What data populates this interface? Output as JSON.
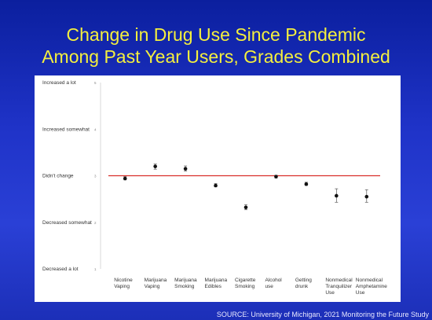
{
  "title_line1": "Change in Drug Use Since Pandemic",
  "title_line2": "Among Past Year Users, Grades Combined",
  "source": "SOURCE: University of Michigan, 2021 Monitoring the Future Study",
  "colors": {
    "title": "#f4ef3e",
    "reference_line": "#d9302b",
    "points": "#111111"
  },
  "chart_data": {
    "type": "scatter",
    "title": "",
    "xlabel": "",
    "ylabel": "",
    "ylim": [
      1,
      5
    ],
    "y_ticks": [
      {
        "value": 5,
        "label": "Increased a lot",
        "num": "5"
      },
      {
        "value": 4,
        "label": "Increased somewhat",
        "num": "4"
      },
      {
        "value": 3,
        "label": "Didn't change",
        "num": "3"
      },
      {
        "value": 2,
        "label": "Decreased somewhat",
        "num": "2"
      },
      {
        "value": 1,
        "label": "Decreased a lot",
        "num": "1"
      }
    ],
    "reference_line": 3,
    "categories": [
      [
        "Nicotine",
        "Vaping"
      ],
      [
        "Marijuana",
        "Vaping"
      ],
      [
        "Marijuana",
        "Smoking"
      ],
      [
        "Marijuana",
        "Edibles"
      ],
      [
        "Cigarette",
        "Smoking"
      ],
      [
        "Alcohol",
        "use"
      ],
      [
        "Getting",
        "drunk"
      ],
      [
        "Nonmedical",
        "Tranquilizer",
        "Use"
      ],
      [
        "Nonmedical",
        "Amphetamine",
        "Use"
      ]
    ],
    "values": [
      2.94,
      3.2,
      3.15,
      2.79,
      2.32,
      2.98,
      2.82,
      2.57,
      2.55
    ],
    "error_low": [
      2.91,
      3.14,
      3.1,
      2.76,
      2.27,
      2.95,
      2.79,
      2.43,
      2.43
    ],
    "error_high": [
      2.98,
      3.25,
      3.21,
      2.83,
      2.38,
      3.01,
      2.86,
      2.72,
      2.7
    ]
  }
}
